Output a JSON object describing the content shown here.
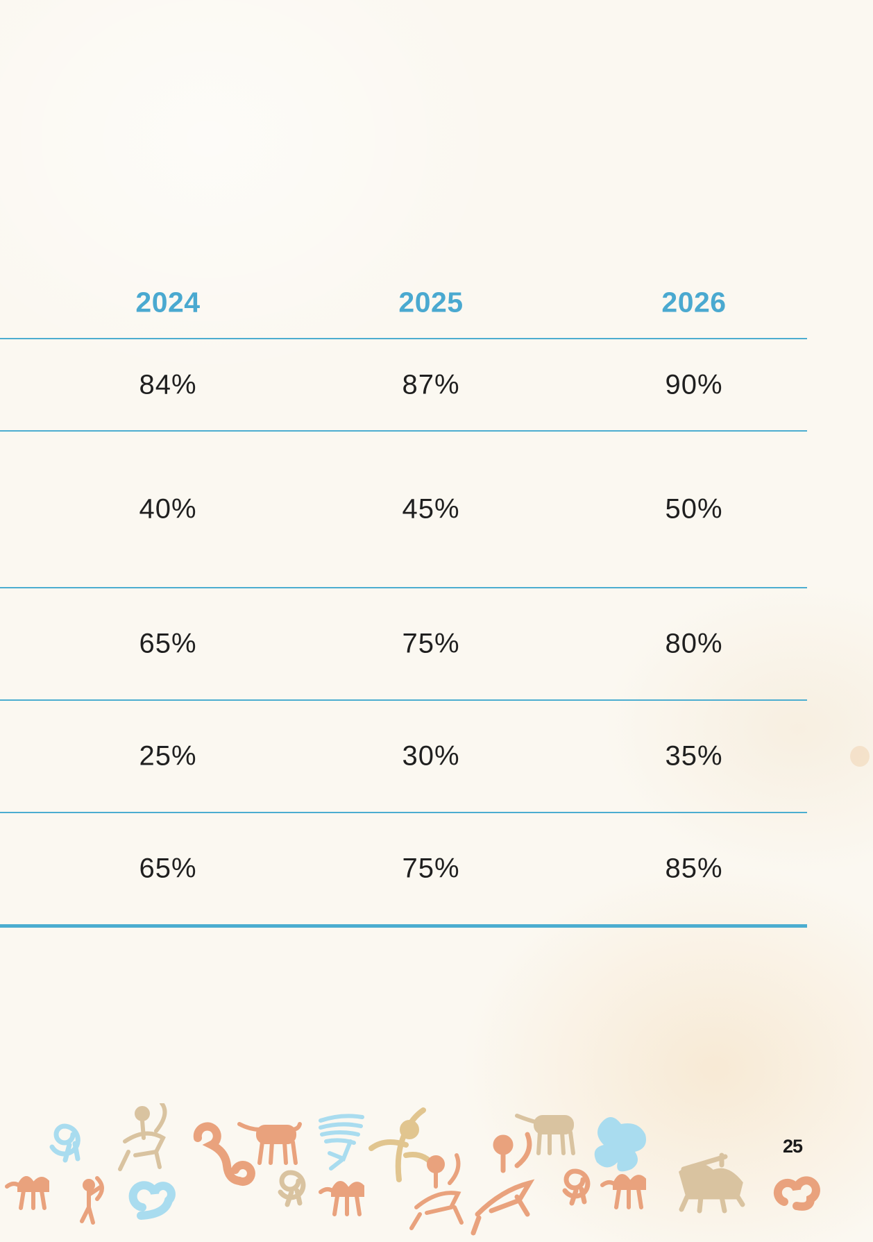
{
  "table": {
    "headers": [
      "2024",
      "2025",
      "2026"
    ],
    "rows": [
      [
        "84%",
        "87%",
        "90%"
      ],
      [
        "40%",
        "45%",
        "50%"
      ],
      [
        "65%",
        "75%",
        "80%"
      ],
      [
        "25%",
        "30%",
        "35%"
      ],
      [
        "65%",
        "75%",
        "85%"
      ]
    ]
  },
  "footer": {
    "page_number": "25"
  },
  "colors": {
    "accent": "#4aa9d0",
    "text": "#1f1f1f",
    "background": "#fbf8f1",
    "ornament_orange": "#e9a27d",
    "ornament_tan": "#d9c3a0",
    "ornament_blue": "#a9dcef"
  },
  "ornaments": [
    "camel-icon",
    "archer-icon",
    "spiral-icon",
    "rider-icon",
    "swirl-icon",
    "horse-icon",
    "tree-icon",
    "plant-icon",
    "camel-icon",
    "horse-icon",
    "rider-icon",
    "spiral-icon",
    "camel-icon",
    "camel-rider-icon",
    "swirl-icon"
  ]
}
